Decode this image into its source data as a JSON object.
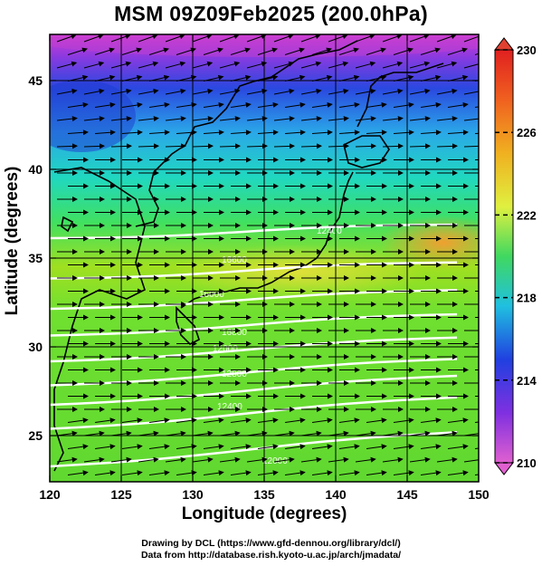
{
  "title": "MSM 09Z09Feb2025 (200.0hPa)",
  "x_axis": {
    "label": "Longitude (degrees)",
    "ticks": [
      "120",
      "125",
      "130",
      "135",
      "140",
      "145",
      "150"
    ],
    "range": [
      120,
      150
    ]
  },
  "y_axis": {
    "label": "Latitude  (degrees)",
    "ticks": [
      "25",
      "30",
      "35",
      "40",
      "45"
    ],
    "range": [
      22.4,
      47.6
    ]
  },
  "colorbar": {
    "ticks": [
      "230",
      "226",
      "222",
      "218",
      "214",
      "210"
    ],
    "range": [
      210,
      230
    ],
    "colors": [
      "#e060d0",
      "#a040e0",
      "#2040e0",
      "#20c0e0",
      "#20d060",
      "#80e020",
      "#f0f040",
      "#f08020",
      "#e02020"
    ]
  },
  "contour_labels": [
    "16600",
    "16000",
    "16800",
    "12000",
    "12800",
    "12400",
    "12000",
    "12400"
  ],
  "credits": {
    "line1": "Drawing by DCL (https://www.gfd-dennou.org/library/dcl/)",
    "line2": "Data from http://database.rish.kyoto-u.ac.jp/arch/jmadata/"
  }
}
